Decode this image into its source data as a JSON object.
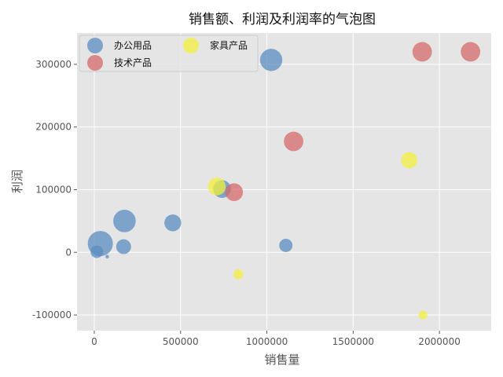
{
  "chart_data": {
    "type": "scatter",
    "subtype": "bubble",
    "title": "销售额、利润及利润率的气泡图",
    "xlabel": "销售量",
    "ylabel": "利润",
    "xlim": [
      -100000,
      2300000
    ],
    "ylim": [
      -125000,
      350000
    ],
    "x_ticks": [
      0,
      500000,
      1000000,
      1500000,
      2000000
    ],
    "y_ticks": [
      -100000,
      0,
      100000,
      200000,
      300000
    ],
    "grid": true,
    "legend_position": "top-left",
    "series": [
      {
        "name": "办公用品",
        "color": "#5b8cc0",
        "points": [
          {
            "x": 15000,
            "y": 1000,
            "size": 0.25
          },
          {
            "x": 35000,
            "y": 14000,
            "size": 1.0
          },
          {
            "x": 75000,
            "y": -7000,
            "size": 0.02
          },
          {
            "x": 170000,
            "y": 9000,
            "size": 0.35
          },
          {
            "x": 175000,
            "y": 50000,
            "size": 0.8
          },
          {
            "x": 455000,
            "y": 47000,
            "size": 0.45
          },
          {
            "x": 740000,
            "y": 101000,
            "size": 0.5
          },
          {
            "x": 1025000,
            "y": 307000,
            "size": 0.78
          },
          {
            "x": 1110000,
            "y": 11000,
            "size": 0.28
          }
        ]
      },
      {
        "name": "技术产品",
        "color": "#d46a6a",
        "points": [
          {
            "x": 810000,
            "y": 96000,
            "size": 0.5
          },
          {
            "x": 1155000,
            "y": 177000,
            "size": 0.6
          },
          {
            "x": 1900000,
            "y": 320000,
            "size": 0.6
          },
          {
            "x": 2180000,
            "y": 320000,
            "size": 0.6
          }
        ]
      },
      {
        "name": "家具产品",
        "color": "#f2ef3c",
        "points": [
          {
            "x": 710000,
            "y": 105000,
            "size": 0.5
          },
          {
            "x": 835000,
            "y": -35000,
            "size": 0.15
          },
          {
            "x": 1825000,
            "y": 147000,
            "size": 0.42
          },
          {
            "x": 1905000,
            "y": -100000,
            "size": 0.12
          }
        ]
      }
    ]
  }
}
